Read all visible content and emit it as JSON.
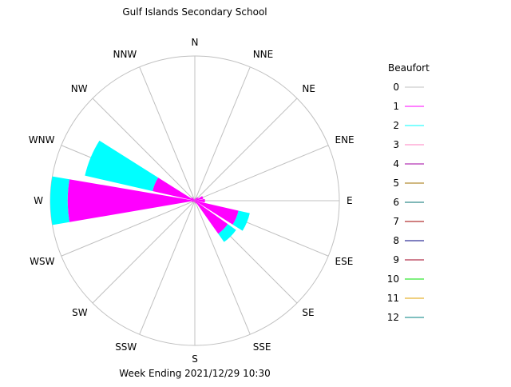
{
  "chart_data": {
    "type": "wind-rose",
    "title": "Gulf Islands Secondary School",
    "subtitle": "Week Ending 2021/12/29 10:30",
    "legend_title": "Beaufort",
    "legend_placement": "right",
    "directions": [
      "N",
      "NNE",
      "NE",
      "ENE",
      "E",
      "ESE",
      "SE",
      "SSE",
      "S",
      "SSW",
      "SW",
      "WSW",
      "W",
      "WNW",
      "NW",
      "NNW"
    ],
    "beaufort_classes": [
      {
        "label": "0",
        "color": "#c0c0c0"
      },
      {
        "label": "1",
        "color": "#ff00ff"
      },
      {
        "label": "2",
        "color": "#00ffff"
      },
      {
        "label": "3",
        "color": "#ff80c0"
      },
      {
        "label": "4",
        "color": "#a000a0"
      },
      {
        "label": "5",
        "color": "#a07000"
      },
      {
        "label": "6",
        "color": "#007070"
      },
      {
        "label": "7",
        "color": "#a00000"
      },
      {
        "label": "8",
        "color": "#000080"
      },
      {
        "label": "9",
        "color": "#a00020"
      },
      {
        "label": "10",
        "color": "#00e000"
      },
      {
        "label": "11",
        "color": "#e0a000"
      },
      {
        "label": "12",
        "color": "#008080"
      }
    ],
    "wedges": [
      {
        "direction": "N",
        "beaufort1": 0.01,
        "beaufort2": 0.0
      },
      {
        "direction": "NNE",
        "beaufort1": 0.02,
        "beaufort2": 0.0
      },
      {
        "direction": "NE",
        "beaufort1": 0.03,
        "beaufort2": 0.0
      },
      {
        "direction": "ENE",
        "beaufort1": 0.06,
        "beaufort2": 0.0
      },
      {
        "direction": "E",
        "beaufort1": 0.07,
        "beaufort2": 0.0
      },
      {
        "direction": "ESE",
        "beaufort1": 0.31,
        "beaufort2": 0.08
      },
      {
        "direction": "SE",
        "beaufort1": 0.28,
        "beaufort2": 0.07
      },
      {
        "direction": "SSE",
        "beaufort1": 0.02,
        "beaufort2": 0.0
      },
      {
        "direction": "S",
        "beaufort1": 0.01,
        "beaufort2": 0.0
      },
      {
        "direction": "SSW",
        "beaufort1": 0.01,
        "beaufort2": 0.0
      },
      {
        "direction": "SW",
        "beaufort1": 0.01,
        "beaufort2": 0.0
      },
      {
        "direction": "WSW",
        "beaufort1": 0.02,
        "beaufort2": 0.0
      },
      {
        "direction": "W",
        "beaufort1": 0.88,
        "beaufort2": 0.12
      },
      {
        "direction": "WNW",
        "beaufort1": 0.3,
        "beaufort2": 0.48
      },
      {
        "direction": "NW",
        "beaufort1": 0.03,
        "beaufort2": 0.0
      },
      {
        "direction": "NNW",
        "beaufort1": 0.01,
        "beaufort2": 0.0
      }
    ],
    "grid": true
  }
}
